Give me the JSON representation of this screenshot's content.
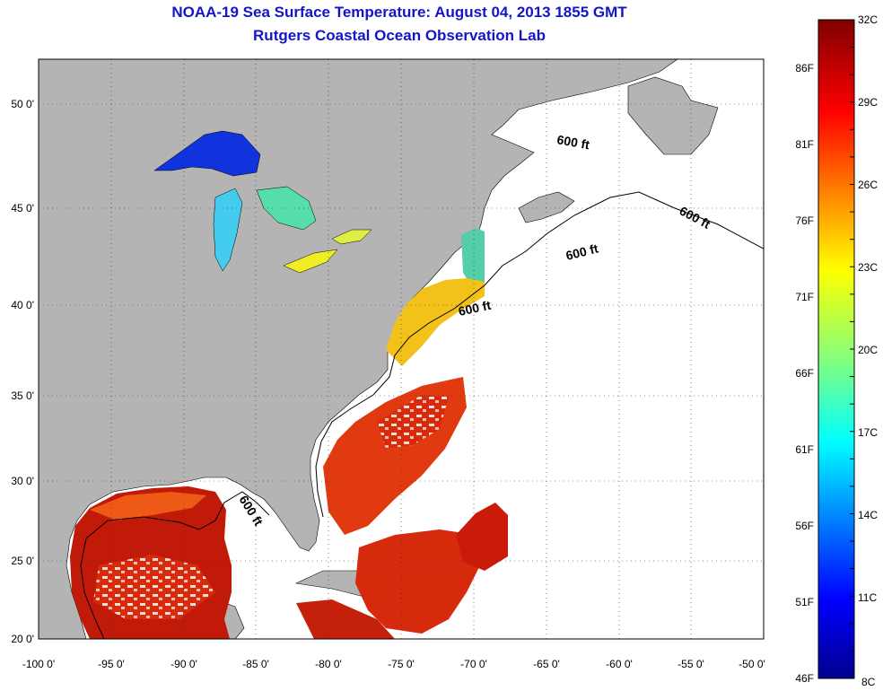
{
  "header": {
    "title": "NOAA-19 Sea Surface Temperature:  August 04, 2013 1855 GMT",
    "subtitle": "Rutgers Coastal Ocean Observation Lab"
  },
  "map": {
    "lon_range": [
      -100,
      -50
    ],
    "lat_range": [
      20,
      52.5
    ],
    "x_ticks": [
      "-100 0'",
      "-95 0'",
      "-90 0'",
      "-85 0'",
      "-80 0'",
      "-75 0'",
      "-70 0'",
      "-65 0'",
      "-60 0'",
      "-55 0'",
      "-50 0'"
    ],
    "y_ticks": [
      "20 0'",
      "25 0'",
      "30 0'",
      "35 0'",
      "40 0'",
      "45 0'",
      "50 0'"
    ],
    "contour_label": "600 ft",
    "grid": "dotted",
    "colors": {
      "land": "#b4b4b4",
      "no_data": "#ffffff"
    }
  },
  "colorbar": {
    "celsius_labels": [
      "32C",
      "29C",
      "26C",
      "23C",
      "20C",
      "17C",
      "14C",
      "11C",
      "8C"
    ],
    "fahrenheit_labels": [
      "86F",
      "81F",
      "76F",
      "71F",
      "66F",
      "61F",
      "56F",
      "51F",
      "46F"
    ],
    "range_c": [
      8,
      32
    ],
    "colormap": "jet"
  }
}
